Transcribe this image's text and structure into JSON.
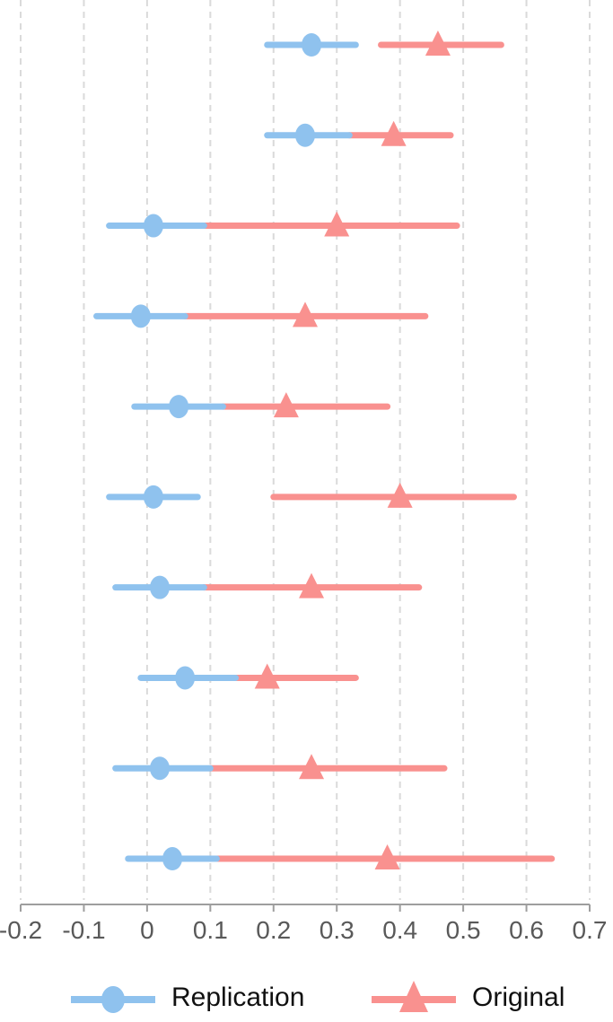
{
  "background": "#FFFFFF",
  "chart_data": {
    "type": "forest",
    "orientation": "horizontal",
    "title": "",
    "xlabel": "",
    "ylabel": "",
    "x_axis": {
      "min": -0.2,
      "max": 0.7,
      "ticks": [
        -0.2,
        -0.1,
        0,
        0.1,
        0.2,
        0.3,
        0.4,
        0.5,
        0.6,
        0.7
      ],
      "tick_labels": [
        "-0.2",
        "-0.1",
        "0",
        "0.1",
        "0.2",
        "0.3",
        "0.4",
        "0.5",
        "0.6",
        "0.7"
      ]
    },
    "grid": {
      "vertical_dashed": true,
      "color": "#DADADA"
    },
    "axis_color": "#9E9E9E",
    "tick_label_color": "#595959",
    "series_meta": {
      "replication": {
        "label": "Replication",
        "color": "#8FC2EE",
        "marker": "circle"
      },
      "original": {
        "label": "Original",
        "color": "#F9918F",
        "marker": "triangle-up"
      }
    },
    "rows": [
      {
        "replication": {
          "estimate": 0.26,
          "ci": [
            0.19,
            0.33
          ]
        },
        "original": {
          "estimate": 0.46,
          "ci": [
            0.37,
            0.56
          ]
        }
      },
      {
        "replication": {
          "estimate": 0.25,
          "ci": [
            0.19,
            0.32
          ]
        },
        "original": {
          "estimate": 0.39,
          "ci": [
            0.32,
            0.48
          ]
        }
      },
      {
        "replication": {
          "estimate": 0.01,
          "ci": [
            -0.06,
            0.09
          ]
        },
        "original": {
          "estimate": 0.3,
          "ci": [
            0.09,
            0.49
          ]
        }
      },
      {
        "replication": {
          "estimate": -0.01,
          "ci": [
            -0.08,
            0.06
          ]
        },
        "original": {
          "estimate": 0.25,
          "ci": [
            0.06,
            0.44
          ]
        }
      },
      {
        "replication": {
          "estimate": 0.05,
          "ci": [
            -0.02,
            0.12
          ]
        },
        "original": {
          "estimate": 0.22,
          "ci": [
            0.12,
            0.38
          ]
        }
      },
      {
        "replication": {
          "estimate": 0.01,
          "ci": [
            -0.06,
            0.08
          ]
        },
        "original": {
          "estimate": 0.4,
          "ci": [
            0.2,
            0.58
          ]
        }
      },
      {
        "replication": {
          "estimate": 0.02,
          "ci": [
            -0.05,
            0.09
          ]
        },
        "original": {
          "estimate": 0.26,
          "ci": [
            0.09,
            0.43
          ]
        }
      },
      {
        "replication": {
          "estimate": 0.06,
          "ci": [
            -0.01,
            0.14
          ]
        },
        "original": {
          "estimate": 0.19,
          "ci": [
            0.14,
            0.33
          ]
        }
      },
      {
        "replication": {
          "estimate": 0.02,
          "ci": [
            -0.05,
            0.1
          ]
        },
        "original": {
          "estimate": 0.26,
          "ci": [
            0.1,
            0.47
          ]
        }
      },
      {
        "replication": {
          "estimate": 0.04,
          "ci": [
            -0.03,
            0.11
          ]
        },
        "original": {
          "estimate": 0.38,
          "ci": [
            0.11,
            0.64
          ]
        }
      }
    ],
    "legend_position": "bottom"
  }
}
